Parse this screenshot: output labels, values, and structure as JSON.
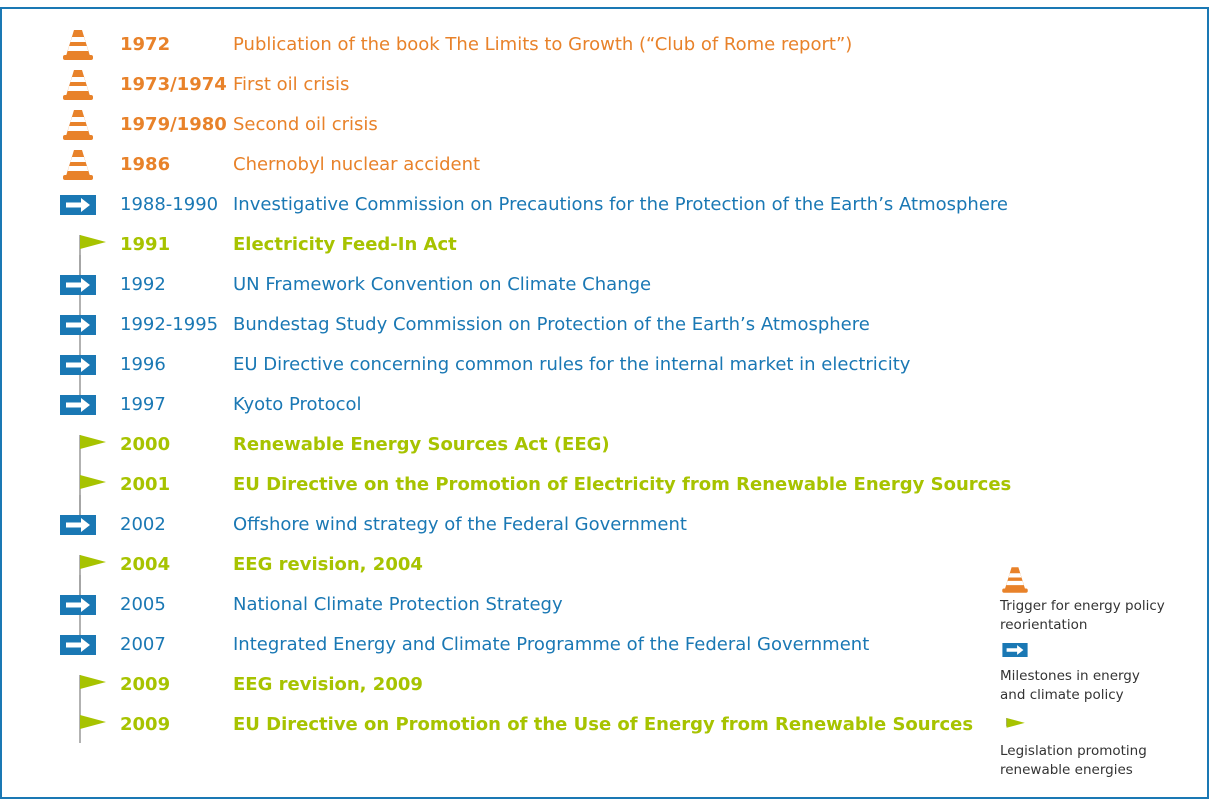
{
  "events": [
    {
      "kind": "trigger",
      "year": "1972",
      "text": "Publication of the book The Limits to Growth (“Club of Rome report”)"
    },
    {
      "kind": "trigger",
      "year": "1973/1974",
      "text": "First oil crisis"
    },
    {
      "kind": "trigger",
      "year": "1979/1980",
      "text": "Second oil crisis"
    },
    {
      "kind": "trigger",
      "year": "1986",
      "text": "Chernobyl nuclear accident"
    },
    {
      "kind": "milestone",
      "year": "1988-1990",
      "text": "Investigative Commission on Precautions for the Protection of the Earth’s Atmosphere"
    },
    {
      "kind": "legislation",
      "year": "1991",
      "text": "Electricity Feed-In Act"
    },
    {
      "kind": "milestone",
      "year": "1992",
      "text": "UN Framework Convention on Climate Change"
    },
    {
      "kind": "milestone",
      "year": "1992-1995",
      "text": "Bundestag Study Commission on Protection of the Earth’s Atmosphere"
    },
    {
      "kind": "milestone",
      "year": "1996",
      "text": "EU Directive concerning common rules for the internal market in electricity"
    },
    {
      "kind": "milestone",
      "year": "1997",
      "text": "Kyoto Protocol"
    },
    {
      "kind": "legislation",
      "year": "2000",
      "text": "Renewable Energy Sources Act (EEG)"
    },
    {
      "kind": "legislation",
      "year": "2001",
      "text": "EU Directive on the Promotion of Electricity from Renewable Energy Sources"
    },
    {
      "kind": "milestone",
      "year": "2002",
      "text": "Offshore wind strategy of the Federal Government"
    },
    {
      "kind": "legislation",
      "year": "2004",
      "text": "EEG revision, 2004"
    },
    {
      "kind": "milestone",
      "year": "2005",
      "text": "National Climate Protection Strategy"
    },
    {
      "kind": "milestone",
      "year": "2007",
      "text": "Integrated Energy and Climate Programme of the Federal Government"
    },
    {
      "kind": "legislation",
      "year": "2009",
      "text": "EEG revision, 2009"
    },
    {
      "kind": "legislation",
      "year": "2009",
      "text": "EU Directive on Promotion of the Use of Energy from Renewable Sources"
    }
  ],
  "legend": [
    {
      "kind": "trigger",
      "lines": [
        "Trigger for energy policy",
        "reorientation"
      ]
    },
    {
      "kind": "milestone",
      "lines": [
        "Milestones in energy",
        "and climate policy"
      ]
    },
    {
      "kind": "legislation",
      "lines": [
        "Legislation promoting",
        "renewable energies"
      ]
    }
  ]
}
